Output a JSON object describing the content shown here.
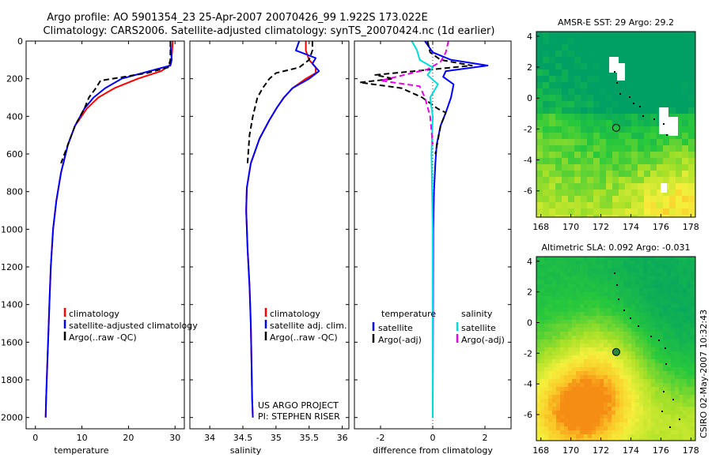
{
  "header": {
    "line1": "Argo profile: AO 5901354_23 25-Apr-2007 20070426_99 1.922S 173.022E",
    "line2": "Climatology: CARS2006. Satellite-adjusted climatology: synTS_20070424.nc (1d earlier)"
  },
  "credit": {
    "line1": "US ARGO PROJECT",
    "line2": "PI: STEPHEN RISER"
  },
  "side_label": "CSIRO 02-May-2007 10:32:43",
  "colors": {
    "clim": "#ff0000",
    "sat": "#0000ff",
    "argo": "#000000",
    "sat_sal": "#00dddd",
    "argo_sal": "#ee00ee"
  },
  "chart_data": [
    {
      "type": "line",
      "id": "temperature",
      "xlabel": "temperature",
      "xlim": [
        -2,
        32
      ],
      "ylim": [
        2060,
        0
      ],
      "xticks": [
        0,
        10,
        20,
        30
      ],
      "yticks": [
        0,
        200,
        400,
        600,
        800,
        1000,
        1200,
        1400,
        1600,
        1800,
        2000
      ],
      "legend": {
        "position": "lower-right",
        "entries": [
          "climatology",
          "satellite-adjusted climatology",
          "Argo(..raw -QC)"
        ]
      },
      "series": [
        {
          "name": "climatology",
          "color_key": "clim",
          "dash": "",
          "x": [
            29.5,
            29.4,
            29.2,
            28.8,
            27.0,
            22.0,
            17.0,
            13.5,
            11.0,
            8.5,
            7.0,
            5.5,
            4.5,
            3.8,
            3.3,
            3.0,
            2.8,
            2.5,
            2.3,
            2.2
          ],
          "depth": [
            0,
            50,
            100,
            130,
            160,
            200,
            250,
            300,
            360,
            450,
            550,
            700,
            850,
            1000,
            1200,
            1400,
            1550,
            1750,
            1900,
            2000
          ]
        },
        {
          "name": "satellite-adjusted climatology",
          "color_key": "sat",
          "dash": "",
          "x": [
            29.0,
            29.1,
            29.3,
            29.0,
            24.5,
            18.5,
            15.0,
            12.5,
            10.5,
            8.5,
            7.0,
            5.5,
            4.5,
            3.8,
            3.3,
            3.0,
            2.8,
            2.5,
            2.3,
            2.2
          ],
          "depth": [
            0,
            50,
            100,
            130,
            160,
            200,
            250,
            300,
            360,
            450,
            550,
            700,
            850,
            1000,
            1200,
            1400,
            1550,
            1750,
            1900,
            2000
          ]
        },
        {
          "name": "Argo(..raw -QC)",
          "color_key": "argo",
          "dash": "7,4",
          "x": [
            29.0,
            29.0,
            29.0,
            28.5,
            24.0,
            19.0,
            14.0,
            13.0,
            11.5,
            10.5,
            8.5,
            7.0,
            5.5
          ],
          "depth": [
            0,
            50,
            100,
            140,
            170,
            190,
            210,
            250,
            300,
            360,
            450,
            550,
            650
          ]
        }
      ]
    },
    {
      "type": "line",
      "id": "salinity",
      "xlabel": "salinity",
      "xlim": [
        33.7,
        36.1
      ],
      "ylim": [
        2060,
        0
      ],
      "xticks": [
        34,
        34.5,
        35,
        35.5,
        36
      ],
      "yticks": [
        0,
        200,
        400,
        600,
        800,
        1000,
        1200,
        1400,
        1600,
        1800,
        2000
      ],
      "legend": {
        "position": "lower-right",
        "entries": [
          "climatology",
          "satellite adj. clim.",
          "Argo(..raw -QC)"
        ]
      },
      "series": [
        {
          "name": "climatology",
          "color_key": "clim",
          "dash": "",
          "x": [
            35.45,
            35.45,
            35.5,
            35.6,
            35.6,
            35.45,
            35.25,
            35.12,
            35.02,
            34.9,
            34.75,
            34.62,
            34.56,
            34.55,
            34.57,
            34.6,
            34.62,
            34.63,
            34.64,
            34.65
          ],
          "depth": [
            0,
            50,
            100,
            140,
            170,
            200,
            250,
            300,
            350,
            420,
            520,
            650,
            780,
            900,
            1100,
            1300,
            1500,
            1700,
            1900,
            2000
          ]
        },
        {
          "name": "satellite adj. clim.",
          "color_key": "sat",
          "dash": "",
          "x": [
            35.35,
            35.3,
            35.6,
            35.55,
            35.65,
            35.5,
            35.25,
            35.12,
            35.02,
            34.9,
            34.75,
            34.62,
            34.56,
            34.55,
            34.57,
            34.6,
            34.62,
            34.63,
            34.64,
            34.65
          ],
          "depth": [
            0,
            50,
            90,
            120,
            160,
            200,
            250,
            300,
            350,
            420,
            520,
            650,
            780,
            900,
            1100,
            1300,
            1500,
            1700,
            1900,
            2000
          ]
        },
        {
          "name": "Argo(..raw -QC)",
          "color_key": "argo",
          "dash": "7,4",
          "x": [
            35.55,
            35.55,
            35.5,
            35.35,
            35.0,
            34.9,
            34.8,
            34.72,
            34.65,
            34.6,
            34.57
          ],
          "depth": [
            0,
            50,
            100,
            140,
            170,
            200,
            250,
            300,
            400,
            500,
            650
          ]
        }
      ]
    },
    {
      "type": "line",
      "id": "difference",
      "xlabel": "difference from climatology",
      "xlim": [
        -3,
        3
      ],
      "ylim": [
        2060,
        0
      ],
      "xticks": [
        -2,
        0,
        2
      ],
      "yticks": [
        0,
        200,
        400,
        600,
        800,
        1000,
        1200,
        1400,
        1600,
        1800,
        2000
      ],
      "legend": {
        "position": "lower-left",
        "headers": [
          "temperature",
          "salinity"
        ],
        "temperature_entries": [
          "satellite",
          "Argo(-adj)"
        ],
        "salinity_entries": [
          "satellite",
          "Argo(-adj)"
        ]
      },
      "series": [
        {
          "name": "temperature satellite",
          "color_key": "sat",
          "dash": "",
          "x": [
            -0.3,
            0.0,
            0.7,
            2.1,
            0.5,
            0.4,
            0.8,
            0.7,
            0.5,
            0.3,
            0.15,
            0.1,
            0.05,
            0.02,
            0.0
          ],
          "depth": [
            0,
            60,
            100,
            130,
            160,
            190,
            230,
            300,
            380,
            450,
            550,
            650,
            800,
            1000,
            2000
          ]
        },
        {
          "name": "temperature Argo(-adj)",
          "color_key": "argo",
          "dash": "7,4",
          "x": [
            -0.2,
            -0.1,
            0.3,
            1.5,
            -2.2,
            -1.5,
            -2.8,
            -1.2,
            -0.4,
            0.2,
            0.5,
            0.3,
            0.1
          ],
          "depth": [
            0,
            60,
            100,
            130,
            180,
            200,
            220,
            250,
            300,
            360,
            380,
            450,
            600
          ]
        },
        {
          "name": "salinity satellite",
          "color_key": "sat_sal",
          "dash": "",
          "x": [
            -0.8,
            -0.6,
            -0.5,
            0.0,
            -0.2,
            0.2,
            -0.1,
            0.0,
            -0.05,
            0.0,
            0.0
          ],
          "depth": [
            0,
            50,
            100,
            140,
            180,
            230,
            300,
            400,
            600,
            1000,
            2000
          ]
        },
        {
          "name": "salinity Argo(-adj)",
          "color_key": "argo_sal",
          "dash": "7,4",
          "x": [
            0.6,
            0.5,
            0.3,
            -0.2,
            -2.0,
            -0.5,
            -0.3,
            -0.1,
            0.0
          ],
          "depth": [
            0,
            60,
            110,
            150,
            210,
            240,
            300,
            400,
            550
          ]
        }
      ]
    },
    {
      "type": "heatmap",
      "id": "sst_map",
      "title": "AMSR-E SST: 29 Argo: 29.2",
      "xlim": [
        167.7,
        178.3
      ],
      "ylim": [
        -7.7,
        4.3
      ],
      "xticks": [
        168,
        170,
        172,
        174,
        176,
        178
      ],
      "yticks": [
        -6,
        -4,
        -2,
        0,
        2,
        4
      ],
      "marker": {
        "lon": 173.022,
        "lat": -1.922
      }
    },
    {
      "type": "heatmap",
      "id": "sla_map",
      "title": "Altimetric SLA: 0.092 Argo: -0.031",
      "xlim": [
        167.7,
        178.3
      ],
      "ylim": [
        -7.7,
        4.3
      ],
      "xticks": [
        168,
        170,
        172,
        174,
        176,
        178
      ],
      "yticks": [
        -6,
        -4,
        -2,
        0,
        2,
        4
      ],
      "marker": {
        "lon": 173.022,
        "lat": -1.922
      }
    }
  ]
}
